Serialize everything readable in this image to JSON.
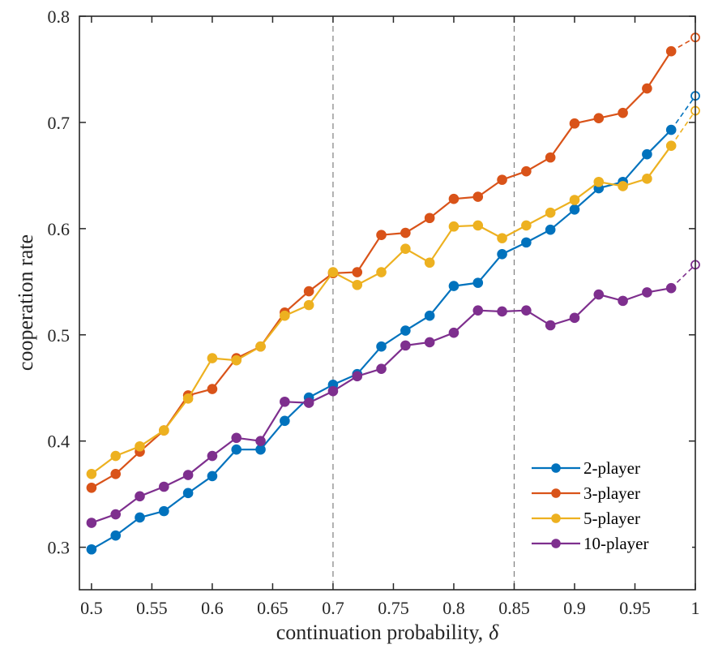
{
  "chart_data": {
    "type": "line",
    "xlabel": "continuation probability,",
    "xlabel_symbol": "δ",
    "ylabel": "cooperation rate",
    "xlim": [
      0.49,
      1.0
    ],
    "ylim": [
      0.26,
      0.8
    ],
    "x_ticks": [
      0.5,
      0.55,
      0.6,
      0.65,
      0.7,
      0.75,
      0.8,
      0.85,
      0.9,
      0.95,
      1.0
    ],
    "x_tick_labels": [
      "0.5",
      "0.55",
      "0.6",
      "0.65",
      "0.7",
      "0.75",
      "0.8",
      "0.85",
      "0.9",
      "0.95",
      "1"
    ],
    "y_ticks": [
      0.3,
      0.4,
      0.5,
      0.6,
      0.7,
      0.8
    ],
    "y_tick_labels": [
      "0.3",
      "0.4",
      "0.5",
      "0.6",
      "0.7",
      "0.8"
    ],
    "vertical_reference_lines": [
      0.7,
      0.85
    ],
    "grid": false,
    "legend_position": "bottom-right",
    "x": [
      0.5,
      0.52,
      0.54,
      0.56,
      0.58,
      0.6,
      0.62,
      0.64,
      0.66,
      0.68,
      0.7,
      0.72,
      0.74,
      0.76,
      0.78,
      0.8,
      0.82,
      0.84,
      0.86,
      0.88,
      0.9,
      0.92,
      0.94,
      0.96,
      0.98
    ],
    "x_extrapolated": 1.0,
    "series": [
      {
        "name": "2-player",
        "color": "#0072BD",
        "values": [
          0.298,
          0.311,
          0.328,
          0.334,
          0.351,
          0.367,
          0.392,
          0.392,
          0.419,
          0.441,
          0.453,
          0.463,
          0.489,
          0.504,
          0.518,
          0.546,
          0.549,
          0.576,
          0.587,
          0.599,
          0.618,
          0.638,
          0.644,
          0.67,
          0.693
        ],
        "extrapolated_value": 0.725
      },
      {
        "name": "3-player",
        "color": "#D95319",
        "values": [
          0.356,
          0.369,
          0.39,
          0.41,
          0.443,
          0.449,
          0.478,
          0.489,
          0.521,
          0.541,
          0.558,
          0.559,
          0.594,
          0.596,
          0.61,
          0.628,
          0.63,
          0.646,
          0.654,
          0.667,
          0.699,
          0.704,
          0.709,
          0.732,
          0.767
        ],
        "extrapolated_value": 0.78
      },
      {
        "name": "5-player",
        "color": "#EDB120",
        "values": [
          0.369,
          0.386,
          0.395,
          0.41,
          0.44,
          0.478,
          0.476,
          0.489,
          0.518,
          0.528,
          0.559,
          0.547,
          0.559,
          0.581,
          0.568,
          0.602,
          0.603,
          0.591,
          0.603,
          0.615,
          0.627,
          0.644,
          0.64,
          0.647,
          0.678
        ],
        "extrapolated_value": 0.711
      },
      {
        "name": "10-player",
        "color": "#7E2F8E",
        "values": [
          0.323,
          0.331,
          0.348,
          0.357,
          0.368,
          0.386,
          0.403,
          0.4,
          0.437,
          0.436,
          0.447,
          0.461,
          0.468,
          0.49,
          0.493,
          0.502,
          0.523,
          0.522,
          0.523,
          0.509,
          0.516,
          0.538,
          0.532,
          0.54,
          0.544
        ],
        "extrapolated_value": 0.566
      }
    ]
  }
}
